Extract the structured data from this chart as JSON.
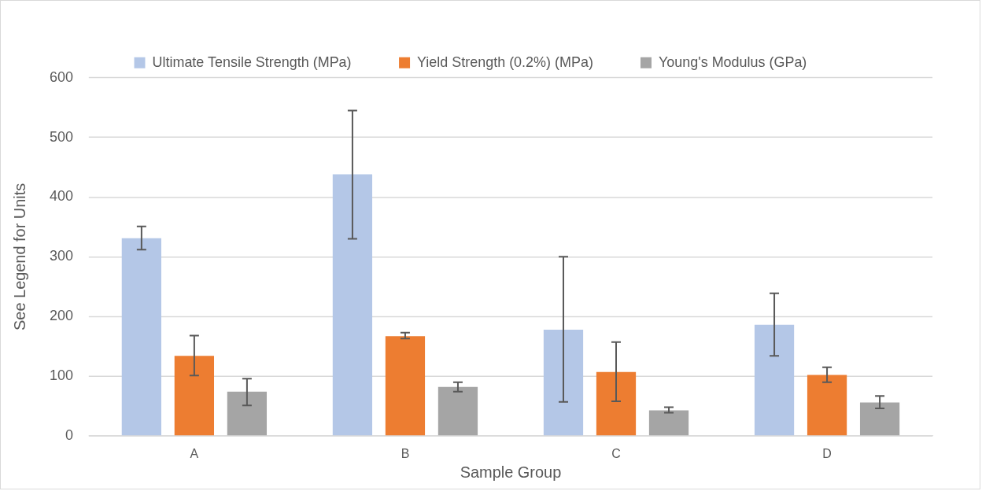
{
  "chart_data": {
    "type": "bar",
    "xlabel": "Sample Group",
    "ylabel": "See Legend for Units",
    "categories": [
      "A",
      "B",
      "C",
      "D"
    ],
    "series": [
      {
        "name": "Ultimate Tensile Strength (MPa)",
        "color": "#b4c7e7",
        "values": [
          331,
          438,
          178,
          186
        ],
        "errors": [
          [
            312,
            351
          ],
          [
            330,
            545
          ],
          [
            57,
            300
          ],
          [
            134,
            239
          ]
        ]
      },
      {
        "name": "Yield Strength (0.2%) (MPa)",
        "color": "#ed7d31",
        "values": [
          134,
          167,
          107,
          102
        ],
        "errors": [
          [
            101,
            168
          ],
          [
            163,
            173
          ],
          [
            58,
            157
          ],
          [
            90,
            115
          ]
        ]
      },
      {
        "name": "Young's Modulus (GPa)",
        "color": "#a5a5a5",
        "values": [
          74,
          82,
          43,
          56
        ],
        "errors": [
          [
            51,
            96
          ],
          [
            74,
            90
          ],
          [
            39,
            48
          ],
          [
            46,
            67
          ]
        ]
      }
    ],
    "ylim": [
      0,
      600
    ],
    "yticks": [
      0,
      100,
      200,
      300,
      400,
      500,
      600
    ],
    "grid": "y",
    "legend": "top"
  }
}
